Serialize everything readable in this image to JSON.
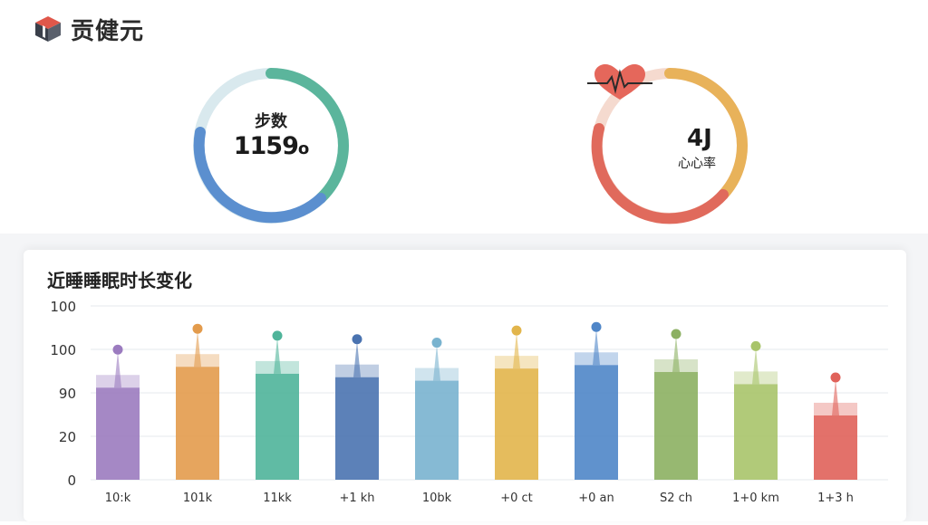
{
  "header": {
    "title": "贡健元",
    "logo_icon": "cube-logo-icon"
  },
  "steps_card": {
    "label": "步数",
    "value": "1159",
    "unit": "o",
    "colors": {
      "track": "#cfe3ea",
      "arc_teal": "#5bb59c",
      "arc_blue": "#5b8fcf"
    }
  },
  "heart_card": {
    "icon": "heart-pulse-icon",
    "value": "4J",
    "label": "心心率",
    "colors": {
      "arc_orange": "#e8b25a",
      "arc_red": "#e06a5c",
      "track": "#f3d1c4"
    }
  },
  "chart_data": {
    "type": "bar",
    "title": "近睡睡眠时长变化",
    "y_tick_labels": [
      "0",
      "20",
      "90",
      "100",
      "100"
    ],
    "categories": [
      "10:k",
      "101k",
      "11kk",
      "+1 kh",
      "10bk",
      "+0 ct",
      "+0 an",
      "S2 ch",
      "1+0 km",
      "1+3 h"
    ],
    "values": [
      53,
      65,
      61,
      59,
      57,
      64,
      66,
      62,
      55,
      37
    ],
    "colors": [
      "#9b7bbf",
      "#e39b4c",
      "#4fb49a",
      "#4a73b0",
      "#79b3cf",
      "#e2b54b",
      "#4f86c8",
      "#8cb062",
      "#a8c46a",
      "#e0625a"
    ]
  }
}
